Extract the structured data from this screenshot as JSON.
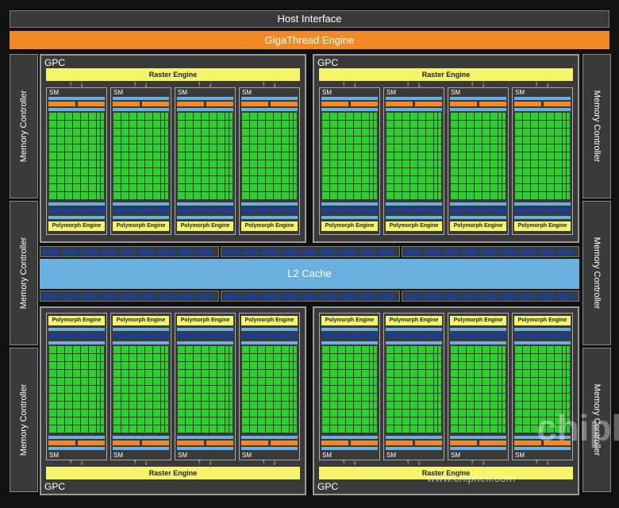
{
  "header": {
    "host_interface": "Host Interface",
    "gigathread_engine": "GigaThread Engine"
  },
  "memory_controller_label": "Memory Controller",
  "l2_cache_label": "L2 Cache",
  "gpc_label": "GPC",
  "raster_engine_label": "Raster Engine",
  "polymorph_engine_label": "Polymorph Engine",
  "sm_label": "SM",
  "watermark": {
    "url": "www.chiphell.com",
    "logo": "chiphell"
  },
  "colors": {
    "background": "#111111",
    "panel": "#3a3a3a",
    "gigathread": "#f08a24",
    "l2_cache": "#6ab0de",
    "raster_polymorph": "#f4f56a",
    "cuda_cores": "#2ed02e",
    "load_store": "#1c3f8e"
  }
}
